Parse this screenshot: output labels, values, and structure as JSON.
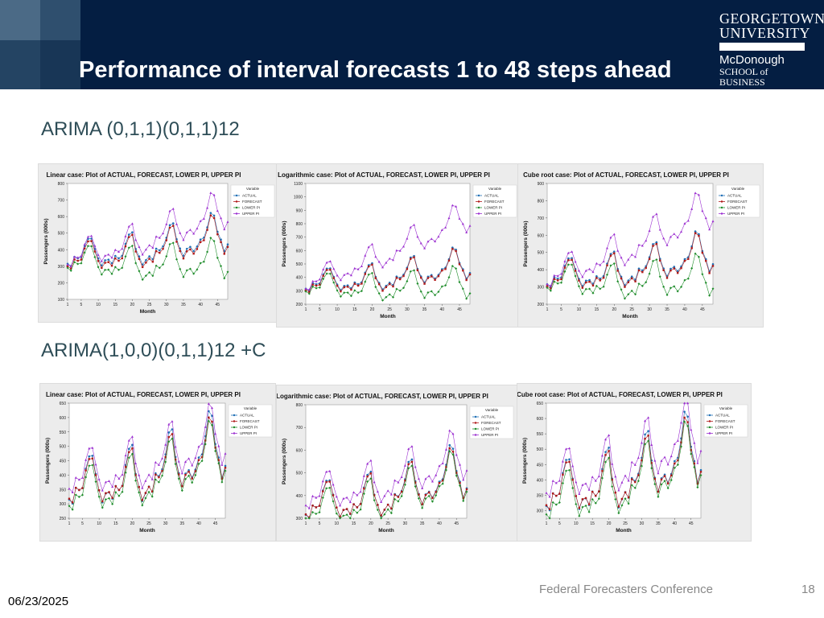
{
  "slide": {
    "title": "Performance of interval forecasts 1 to 48 steps ahead",
    "section1": "ARIMA (0,1,1)(0,1,1)12",
    "section2": "ARIMA(1,0,0)(0,1,1)12 +C",
    "footer_conference": "Federal Forecasters Conference",
    "page_number": "18",
    "date": "06/23/2025"
  },
  "logo": {
    "line1": "GEORGETOWN",
    "line2": "UNIVERSITY",
    "line3": "McDonough",
    "line4": "SCHOOL of BUSINESS"
  },
  "colors": {
    "header_bg": "#041E42",
    "actual": "#1f6fb5",
    "forecast": "#b01818",
    "lower_pi": "#1e8c2a",
    "upper_pi": "#9b2fd0"
  },
  "chart_data": [
    {
      "type": "line",
      "title": "Linear case: Plot of ACTUAL, FORECAST, LOWER PI, UPPER PI",
      "xlabel": "Month",
      "ylabel": "Passengers (000s)",
      "xlim": [
        1,
        48
      ],
      "xticks": [
        1,
        5,
        10,
        15,
        20,
        25,
        30,
        35,
        40,
        45
      ],
      "ylim": [
        100,
        800
      ],
      "yticks": [
        100,
        200,
        300,
        400,
        500,
        600,
        700,
        800
      ],
      "legend": "top-right",
      "legend_title": "Variable",
      "series": [
        {
          "name": "ACTUAL",
          "values": [
            315,
            301,
            356,
            348,
            355,
            422,
            465,
            467,
            404,
            347,
            305,
            336,
            340,
            318,
            362,
            348,
            363,
            435,
            491,
            505,
            404,
            359,
            310,
            337,
            360,
            342,
            406,
            396,
            420,
            472,
            548,
            559,
            463,
            407,
            362,
            405,
            417,
            391,
            419,
            461,
            472,
            535,
            622,
            606,
            508,
            461,
            390,
            432
          ]
        }
      ]
    },
    {
      "type": "line",
      "title": "Logarithmic case: Plot of ACTUAL, FORECAST, LOWER PI, UPPER PI",
      "xlabel": "Month",
      "ylabel": "Passengers (000s)",
      "xlim": [
        1,
        48
      ],
      "xticks": [
        1,
        5,
        10,
        15,
        20,
        25,
        30,
        35,
        40,
        45
      ],
      "ylim": [
        200,
        1100
      ],
      "yticks": [
        200,
        300,
        400,
        500,
        600,
        700,
        800,
        900,
        1000,
        1100
      ],
      "legend": "top-right",
      "legend_title": "Variable",
      "series": [
        {
          "name": "ACTUAL",
          "values": [
            315,
            301,
            356,
            348,
            355,
            422,
            465,
            467,
            404,
            347,
            305,
            336,
            340,
            318,
            362,
            348,
            363,
            435,
            491,
            505,
            404,
            359,
            310,
            337,
            360,
            342,
            406,
            396,
            420,
            472,
            548,
            559,
            463,
            407,
            362,
            405,
            417,
            391,
            419,
            461,
            472,
            535,
            622,
            606,
            508,
            461,
            390,
            432
          ]
        }
      ]
    },
    {
      "type": "line",
      "title": "Cube root case: Plot of ACTUAL, FORECAST, LOWER PI, UPPER PI",
      "xlabel": "Month",
      "ylabel": "Passengers (000s)",
      "xlim": [
        1,
        48
      ],
      "xticks": [
        1,
        5,
        10,
        15,
        20,
        25,
        30,
        35,
        40,
        45
      ],
      "ylim": [
        200,
        900
      ],
      "yticks": [
        200,
        300,
        400,
        500,
        600,
        700,
        800,
        900
      ],
      "legend": "top-right",
      "legend_title": "Variable",
      "series": [
        {
          "name": "ACTUAL",
          "values": [
            315,
            301,
            356,
            348,
            355,
            422,
            465,
            467,
            404,
            347,
            305,
            336,
            340,
            318,
            362,
            348,
            363,
            435,
            491,
            505,
            404,
            359,
            310,
            337,
            360,
            342,
            406,
            396,
            420,
            472,
            548,
            559,
            463,
            407,
            362,
            405,
            417,
            391,
            419,
            461,
            472,
            535,
            622,
            606,
            508,
            461,
            390,
            432
          ]
        }
      ]
    },
    {
      "type": "line",
      "title": "Linear case: Plot of ACTUAL, FORECAST, LOWER PI, UPPER PI",
      "xlabel": "Month",
      "ylabel": "Passengers (000s)",
      "xlim": [
        1,
        48
      ],
      "xticks": [
        1,
        5,
        10,
        15,
        20,
        25,
        30,
        35,
        40,
        45
      ],
      "ylim": [
        250,
        650
      ],
      "yticks": [
        250,
        300,
        350,
        400,
        450,
        500,
        550,
        600,
        650
      ],
      "legend": "top-right",
      "legend_title": "Variable",
      "series": [
        {
          "name": "ACTUAL",
          "values": [
            315,
            301,
            356,
            348,
            355,
            422,
            465,
            467,
            404,
            347,
            305,
            336,
            340,
            318,
            362,
            348,
            363,
            435,
            491,
            505,
            404,
            359,
            310,
            337,
            360,
            342,
            406,
            396,
            420,
            472,
            548,
            559,
            463,
            407,
            362,
            405,
            417,
            391,
            419,
            461,
            472,
            535,
            622,
            606,
            508,
            461,
            390,
            432
          ]
        }
      ]
    },
    {
      "type": "line",
      "title": "Logarithmic case: Plot of ACTUAL, FORECAST, LOWER PI, UPPER PI",
      "xlabel": "Month",
      "ylabel": "Passengers (000s)",
      "xlim": [
        1,
        48
      ],
      "xticks": [
        1,
        5,
        10,
        15,
        20,
        25,
        30,
        35,
        40,
        45
      ],
      "ylim": [
        300,
        800
      ],
      "yticks": [
        300,
        400,
        500,
        600,
        700,
        800
      ],
      "legend": "top-right",
      "legend_title": "Variable",
      "series": [
        {
          "name": "ACTUAL",
          "values": [
            315,
            301,
            356,
            348,
            355,
            422,
            465,
            467,
            404,
            347,
            305,
            336,
            340,
            318,
            362,
            348,
            363,
            435,
            491,
            505,
            404,
            359,
            310,
            337,
            360,
            342,
            406,
            396,
            420,
            472,
            548,
            559,
            463,
            407,
            362,
            405,
            417,
            391,
            419,
            461,
            472,
            535,
            622,
            606,
            508,
            461,
            390,
            432
          ]
        }
      ]
    },
    {
      "type": "line",
      "title": "Cube root case: Plot of ACTUAL, FORECAST, LOWER PI, UPPER PI",
      "xlabel": "Month",
      "ylabel": "Passengers (000s)",
      "xlim": [
        1,
        48
      ],
      "xticks": [
        1,
        5,
        10,
        15,
        20,
        25,
        30,
        35,
        40,
        45
      ],
      "ylim": [
        275,
        650
      ],
      "yticks": [
        300,
        350,
        400,
        450,
        500,
        550,
        600,
        650
      ],
      "legend": "top-right",
      "legend_title": "Variable",
      "series": [
        {
          "name": "ACTUAL",
          "values": [
            315,
            301,
            356,
            348,
            355,
            422,
            465,
            467,
            404,
            347,
            305,
            336,
            340,
            318,
            362,
            348,
            363,
            435,
            491,
            505,
            404,
            359,
            310,
            337,
            360,
            342,
            406,
            396,
            420,
            472,
            548,
            559,
            463,
            407,
            362,
            405,
            417,
            391,
            419,
            461,
            472,
            535,
            622,
            606,
            508,
            461,
            390,
            432
          ]
        }
      ]
    }
  ],
  "band_models": [
    {
      "forecast_offset": -15,
      "forecast_scale": 1.0,
      "lower_width": 0,
      "lower_growth": 3.0,
      "upper_width": 0,
      "upper_growth": 3.0
    },
    {
      "forecast_offset": -10,
      "forecast_scale": 1.0,
      "lower_width": 0,
      "lower_growth": 2.8,
      "upper_width": 0,
      "upper_growth": 7.5
    },
    {
      "forecast_offset": -10,
      "forecast_scale": 1.0,
      "lower_width": 0,
      "lower_growth": 2.6,
      "upper_width": 0,
      "upper_growth": 5.3
    },
    {
      "forecast_offset": 0,
      "forecast_scale": 0.92,
      "lower_width": -25,
      "lower_growth": -0.3,
      "upper_width": 25,
      "upper_growth": 0.3
    },
    {
      "forecast_offset": 0,
      "forecast_scale": 0.95,
      "lower_width": -30,
      "lower_growth": -0.4,
      "upper_width": 30,
      "upper_growth": 0.9
    },
    {
      "forecast_offset": 0,
      "forecast_scale": 0.93,
      "lower_width": -30,
      "lower_growth": -0.4,
      "upper_width": 30,
      "upper_growth": 0.6
    }
  ]
}
